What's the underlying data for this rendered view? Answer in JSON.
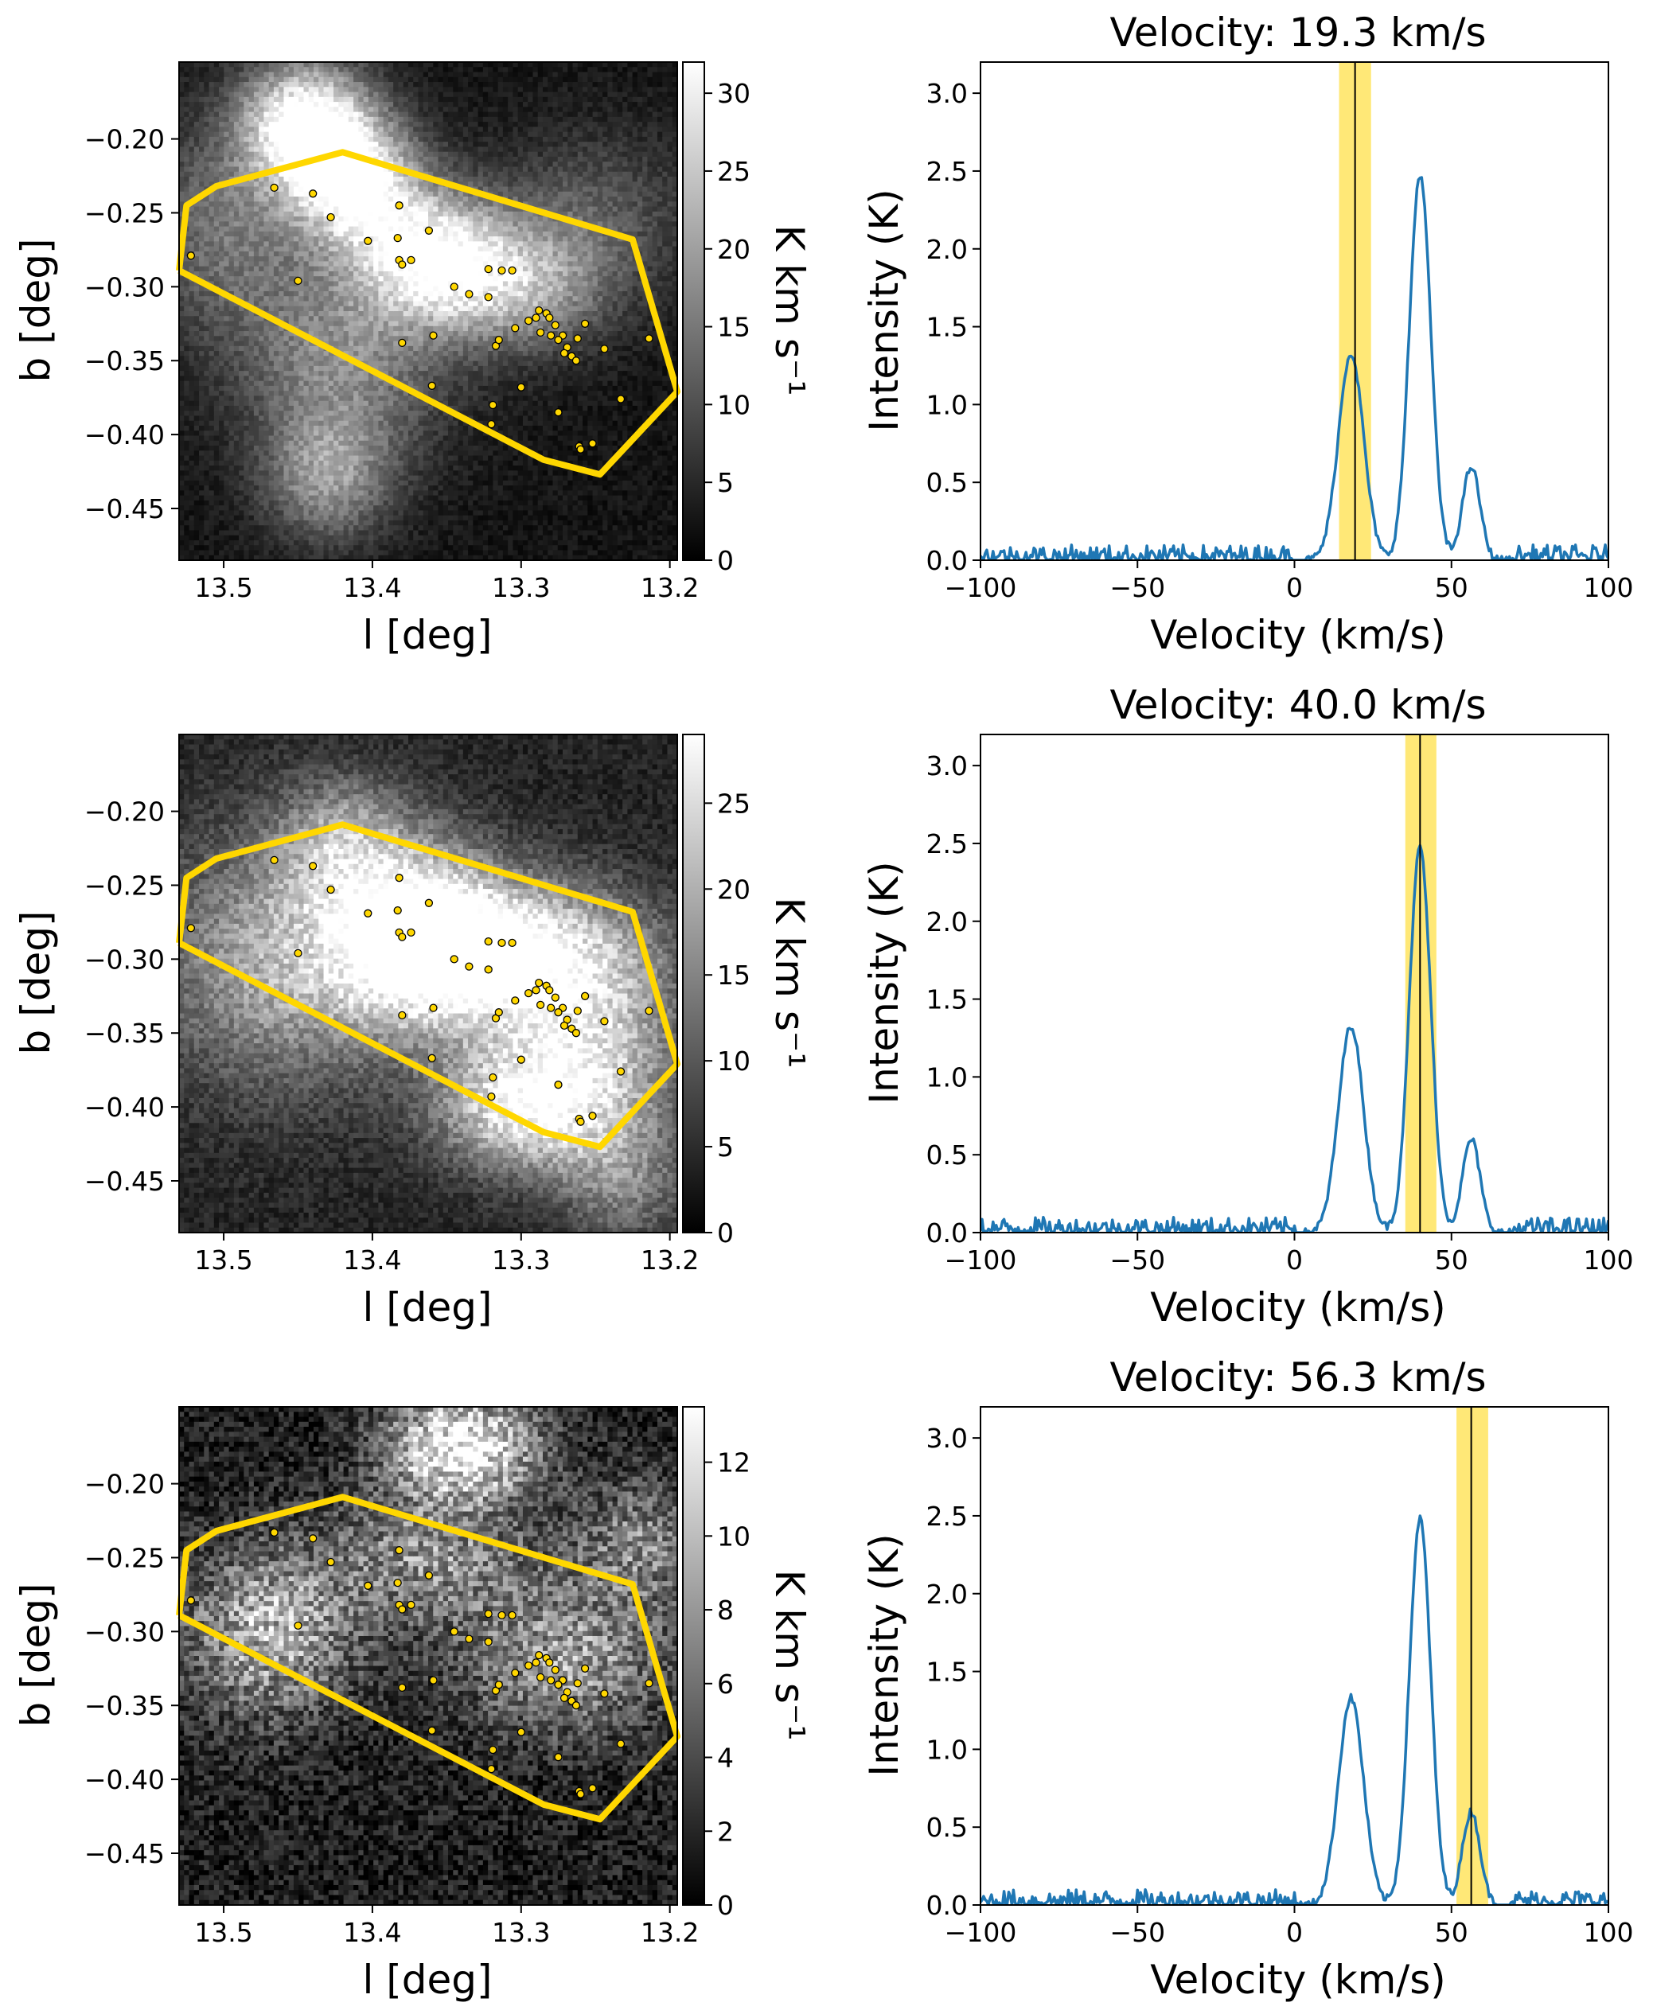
{
  "chart_data": [
    {
      "type": "heatmap",
      "xlabel": "l [deg]",
      "ylabel": "b [deg]",
      "xlim": [
        13.53,
        13.195
      ],
      "ylim": [
        -0.485,
        -0.148
      ],
      "xticks": [
        "13.5",
        "13.4",
        "13.3",
        "13.2"
      ],
      "xtick_values": [
        13.5,
        13.4,
        13.3,
        13.2
      ],
      "yticks": [
        "−0.20",
        "−0.25",
        "−0.30",
        "−0.35",
        "−0.40",
        "−0.45"
      ],
      "ytick_values": [
        -0.2,
        -0.25,
        -0.3,
        -0.35,
        -0.4,
        -0.45
      ],
      "colorbar": {
        "label": "K km s⁻¹",
        "min": 0,
        "max": 32,
        "ticks": [
          "0",
          "5",
          "10",
          "15",
          "20",
          "25",
          "30"
        ],
        "tick_values": [
          0,
          5,
          10,
          15,
          20,
          25,
          30
        ],
        "colormap": "gray"
      },
      "polygon_color": "#ffd700",
      "marker_color": "#ffd700"
    },
    {
      "type": "line",
      "title": "Velocity: 19.3 km/s",
      "xlabel": "Velocity (km/s)",
      "ylabel": "Intensity (K)",
      "xlim": [
        -100,
        100
      ],
      "ylim": [
        0,
        3.2
      ],
      "xticks": [
        "−100",
        "−50",
        "0",
        "50",
        "100"
      ],
      "xtick_values": [
        -100,
        -50,
        0,
        50,
        100
      ],
      "yticks": [
        "0.0",
        "0.5",
        "1.0",
        "1.5",
        "2.0",
        "2.5",
        "3.0"
      ],
      "ytick_values": [
        0,
        0.5,
        1.0,
        1.5,
        2.0,
        2.5,
        3.0
      ],
      "marker_velocity": 19.3,
      "band": [
        14.2,
        24.4
      ],
      "line_color": "#1f77b4",
      "band_color": "#ffe877",
      "peaks": [
        {
          "v": 18,
          "amp": 1.33,
          "sigma": 4.0
        },
        {
          "v": 40,
          "amp": 2.48,
          "sigma": 3.4
        },
        {
          "v": 56.3,
          "amp": 0.6,
          "sigma": 2.8
        }
      ]
    },
    {
      "type": "heatmap",
      "xlabel": "l [deg]",
      "ylabel": "b [deg]",
      "xlim": [
        13.53,
        13.195
      ],
      "ylim": [
        -0.485,
        -0.148
      ],
      "xticks": [
        "13.5",
        "13.4",
        "13.3",
        "13.2"
      ],
      "xtick_values": [
        13.5,
        13.4,
        13.3,
        13.2
      ],
      "yticks": [
        "−0.20",
        "−0.25",
        "−0.30",
        "−0.35",
        "−0.40",
        "−0.45"
      ],
      "ytick_values": [
        -0.2,
        -0.25,
        -0.3,
        -0.35,
        -0.4,
        -0.45
      ],
      "colorbar": {
        "label": "K km s⁻¹",
        "min": 0,
        "max": 29,
        "ticks": [
          "0",
          "5",
          "10",
          "15",
          "20",
          "25"
        ],
        "tick_values": [
          0,
          5,
          10,
          15,
          20,
          25
        ],
        "colormap": "gray"
      },
      "polygon_color": "#ffd700",
      "marker_color": "#ffd700"
    },
    {
      "type": "line",
      "title": "Velocity: 40.0 km/s",
      "xlabel": "Velocity (km/s)",
      "ylabel": "Intensity (K)",
      "xlim": [
        -100,
        100
      ],
      "ylim": [
        0,
        3.2
      ],
      "xticks": [
        "−100",
        "−50",
        "0",
        "50",
        "100"
      ],
      "xtick_values": [
        -100,
        -50,
        0,
        50,
        100
      ],
      "yticks": [
        "0.0",
        "0.5",
        "1.0",
        "1.5",
        "2.0",
        "2.5",
        "3.0"
      ],
      "ytick_values": [
        0,
        0.5,
        1.0,
        1.5,
        2.0,
        2.5,
        3.0
      ],
      "marker_velocity": 40.0,
      "band": [
        35.3,
        45.2
      ],
      "line_color": "#1f77b4",
      "band_color": "#ffe877",
      "peaks": [
        {
          "v": 18,
          "amp": 1.33,
          "sigma": 4.0
        },
        {
          "v": 40,
          "amp": 2.48,
          "sigma": 3.4
        },
        {
          "v": 56.3,
          "amp": 0.6,
          "sigma": 2.8
        }
      ]
    },
    {
      "type": "heatmap",
      "xlabel": "l [deg]",
      "ylabel": "b [deg]",
      "xlim": [
        13.53,
        13.195
      ],
      "ylim": [
        -0.485,
        -0.148
      ],
      "xticks": [
        "13.5",
        "13.4",
        "13.3",
        "13.2"
      ],
      "xtick_values": [
        13.5,
        13.4,
        13.3,
        13.2
      ],
      "yticks": [
        "−0.20",
        "−0.25",
        "−0.30",
        "−0.35",
        "−0.40",
        "−0.45"
      ],
      "ytick_values": [
        -0.2,
        -0.25,
        -0.3,
        -0.35,
        -0.4,
        -0.45
      ],
      "colorbar": {
        "label": "K km s⁻¹",
        "min": 0,
        "max": 13.5,
        "ticks": [
          "0",
          "2",
          "4",
          "6",
          "8",
          "10",
          "12"
        ],
        "tick_values": [
          0,
          2,
          4,
          6,
          8,
          10,
          12
        ],
        "colormap": "gray"
      },
      "polygon_color": "#ffd700",
      "marker_color": "#ffd700"
    },
    {
      "type": "line",
      "title": "Velocity: 56.3 km/s",
      "xlabel": "Velocity (km/s)",
      "ylabel": "Intensity (K)",
      "xlim": [
        -100,
        100
      ],
      "ylim": [
        0,
        3.2
      ],
      "xticks": [
        "−100",
        "−50",
        "0",
        "50",
        "100"
      ],
      "xtick_values": [
        -100,
        -50,
        0,
        50,
        100
      ],
      "yticks": [
        "0.0",
        "0.5",
        "1.0",
        "1.5",
        "2.0",
        "2.5",
        "3.0"
      ],
      "ytick_values": [
        0,
        0.5,
        1.0,
        1.5,
        2.0,
        2.5,
        3.0
      ],
      "marker_velocity": 56.3,
      "band": [
        51.6,
        61.7
      ],
      "line_color": "#1f77b4",
      "band_color": "#ffe877",
      "peaks": [
        {
          "v": 18,
          "amp": 1.33,
          "sigma": 4.0
        },
        {
          "v": 40,
          "amp": 2.48,
          "sigma": 3.4
        },
        {
          "v": 56.3,
          "amp": 0.6,
          "sigma": 2.8
        }
      ]
    }
  ],
  "polygon_lb": [
    [
      13.53,
      -0.289
    ],
    [
      13.525,
      -0.245
    ],
    [
      13.505,
      -0.232
    ],
    [
      13.42,
      -0.209
    ],
    [
      13.225,
      -0.268
    ],
    [
      13.195,
      -0.371
    ],
    [
      13.247,
      -0.427
    ],
    [
      13.285,
      -0.417
    ],
    [
      13.53,
      -0.289
    ]
  ],
  "sources_lb": [
    [
      13.522,
      -0.279
    ],
    [
      13.466,
      -0.233
    ],
    [
      13.44,
      -0.237
    ],
    [
      13.428,
      -0.253
    ],
    [
      13.45,
      -0.296
    ],
    [
      13.403,
      -0.269
    ],
    [
      13.382,
      -0.245
    ],
    [
      13.383,
      -0.267
    ],
    [
      13.382,
      -0.282
    ],
    [
      13.38,
      -0.285
    ],
    [
      13.374,
      -0.282
    ],
    [
      13.362,
      -0.262
    ],
    [
      13.359,
      -0.333
    ],
    [
      13.36,
      -0.367
    ],
    [
      13.38,
      -0.338
    ],
    [
      13.345,
      -0.3
    ],
    [
      13.335,
      -0.305
    ],
    [
      13.322,
      -0.288
    ],
    [
      13.313,
      -0.289
    ],
    [
      13.306,
      -0.289
    ],
    [
      13.322,
      -0.307
    ],
    [
      13.317,
      -0.34
    ],
    [
      13.315,
      -0.336
    ],
    [
      13.319,
      -0.38
    ],
    [
      13.32,
      -0.393
    ],
    [
      13.304,
      -0.328
    ],
    [
      13.3,
      -0.368
    ],
    [
      13.295,
      -0.323
    ],
    [
      13.29,
      -0.321
    ],
    [
      13.287,
      -0.331
    ],
    [
      13.283,
      -0.318
    ],
    [
      13.281,
      -0.321
    ],
    [
      13.277,
      -0.326
    ],
    [
      13.28,
      -0.333
    ],
    [
      13.272,
      -0.333
    ],
    [
      13.269,
      -0.341
    ],
    [
      13.266,
      -0.347
    ],
    [
      13.271,
      -0.345
    ],
    [
      13.275,
      -0.336
    ],
    [
      13.263,
      -0.35
    ],
    [
      13.262,
      -0.335
    ],
    [
      13.257,
      -0.325
    ],
    [
      13.275,
      -0.385
    ],
    [
      13.261,
      -0.408
    ],
    [
      13.252,
      -0.406
    ],
    [
      13.26,
      -0.41
    ],
    [
      13.244,
      -0.342
    ],
    [
      13.233,
      -0.376
    ],
    [
      13.214,
      -0.335
    ],
    [
      13.288,
      -0.316
    ]
  ]
}
